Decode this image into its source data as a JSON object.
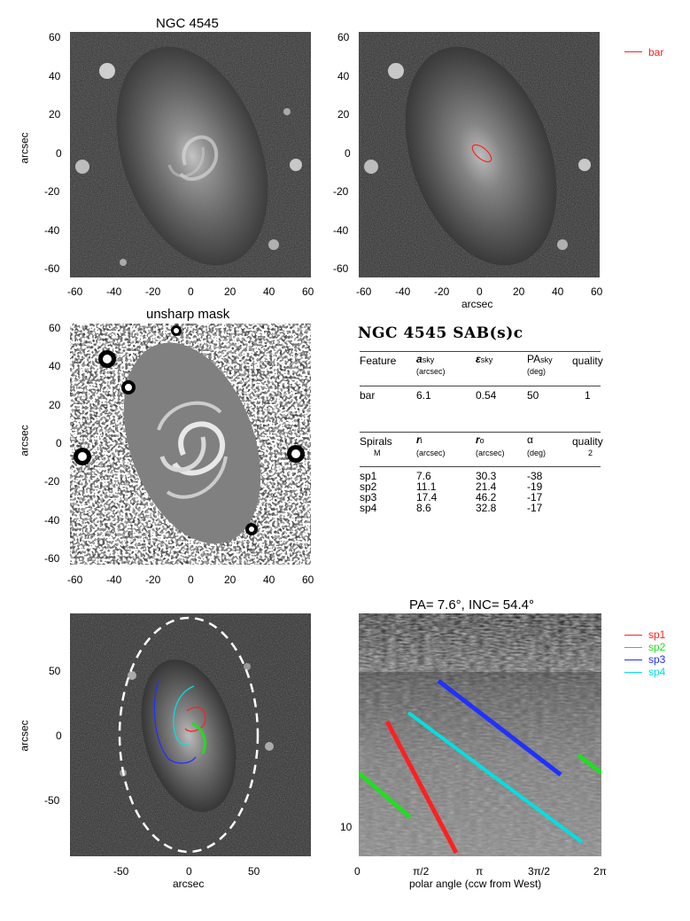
{
  "colors": {
    "bar": "#ff2020",
    "sp1": "#ff2020",
    "sp2": "#22dd22",
    "sp3": "#2030ff",
    "sp4": "#00e0e0"
  },
  "panel1": {
    "title": "NGC 4545",
    "ylabel": "arcsec",
    "xticks": [
      "-60",
      "-40",
      "-20",
      "0",
      "20",
      "40",
      "60"
    ],
    "yticks": [
      "60",
      "40",
      "20",
      "0",
      "-20",
      "-40",
      "-60"
    ]
  },
  "panel2": {
    "xlabel": "arcsec",
    "xticks": [
      "-60",
      "-40",
      "-20",
      "0",
      "20",
      "40",
      "60"
    ],
    "yticks": [
      "60",
      "40",
      "20",
      "0",
      "-20",
      "-40",
      "-60"
    ],
    "legend": "bar"
  },
  "panel3": {
    "title": "unsharp mask",
    "ylabel": "arcsec",
    "xticks": [
      "-60",
      "-40",
      "-20",
      "0",
      "20",
      "40",
      "60"
    ],
    "yticks": [
      "60",
      "40",
      "20",
      "0",
      "-20",
      "-40",
      "-60"
    ]
  },
  "table": {
    "title": "NGC 4545  SAB(s)c",
    "bar_header": {
      "feature": "Feature",
      "a_sym": "a",
      "a_sub": "sky",
      "a_unit": "(arcsec)",
      "eps_sym": "ε",
      "eps_sub": "sky",
      "pa_sym": "PA",
      "pa_sub": "sky",
      "pa_unit": "(deg)",
      "quality": "quality"
    },
    "bar_row": {
      "feature": "bar",
      "a": "6.1",
      "eps": "0.54",
      "pa": "50",
      "quality": "1"
    },
    "spiral_header": {
      "spirals": "Spirals",
      "m": "M",
      "ri_sym": "r",
      "ri_sub": "i",
      "ri_unit": "(arcsec)",
      "ro_sym": "r",
      "ro_sub": "o",
      "ro_unit": "(arcsec)",
      "alpha_sym": "α",
      "alpha_unit": "(deg)",
      "quality": "quality",
      "quality_val": "2"
    },
    "spiral_rows": [
      {
        "name": "sp1",
        "ri": "7.6",
        "ro": "30.3",
        "alpha": "-38"
      },
      {
        "name": "sp2",
        "ri": "11.1",
        "ro": "21.4",
        "alpha": "-19"
      },
      {
        "name": "sp3",
        "ri": "17.4",
        "ro": "46.2",
        "alpha": "-17"
      },
      {
        "name": "sp4",
        "ri": "8.6",
        "ro": "32.8",
        "alpha": "-17"
      }
    ]
  },
  "panel5": {
    "ylabel": "arcsec",
    "xlabel": "arcsec",
    "xticks": [
      "-50",
      "0",
      "50"
    ],
    "yticks": [
      "50",
      "0",
      "-50"
    ]
  },
  "panel6": {
    "title": "PA=   7.6°, INC=  54.4°",
    "xlabel": "polar angle (ccw from West)",
    "xticks": [
      "0",
      "π/2",
      "π",
      "3π/2",
      "2π"
    ],
    "ytick": "10",
    "legend": [
      "sp1",
      "sp2",
      "sp3",
      "sp4"
    ]
  }
}
